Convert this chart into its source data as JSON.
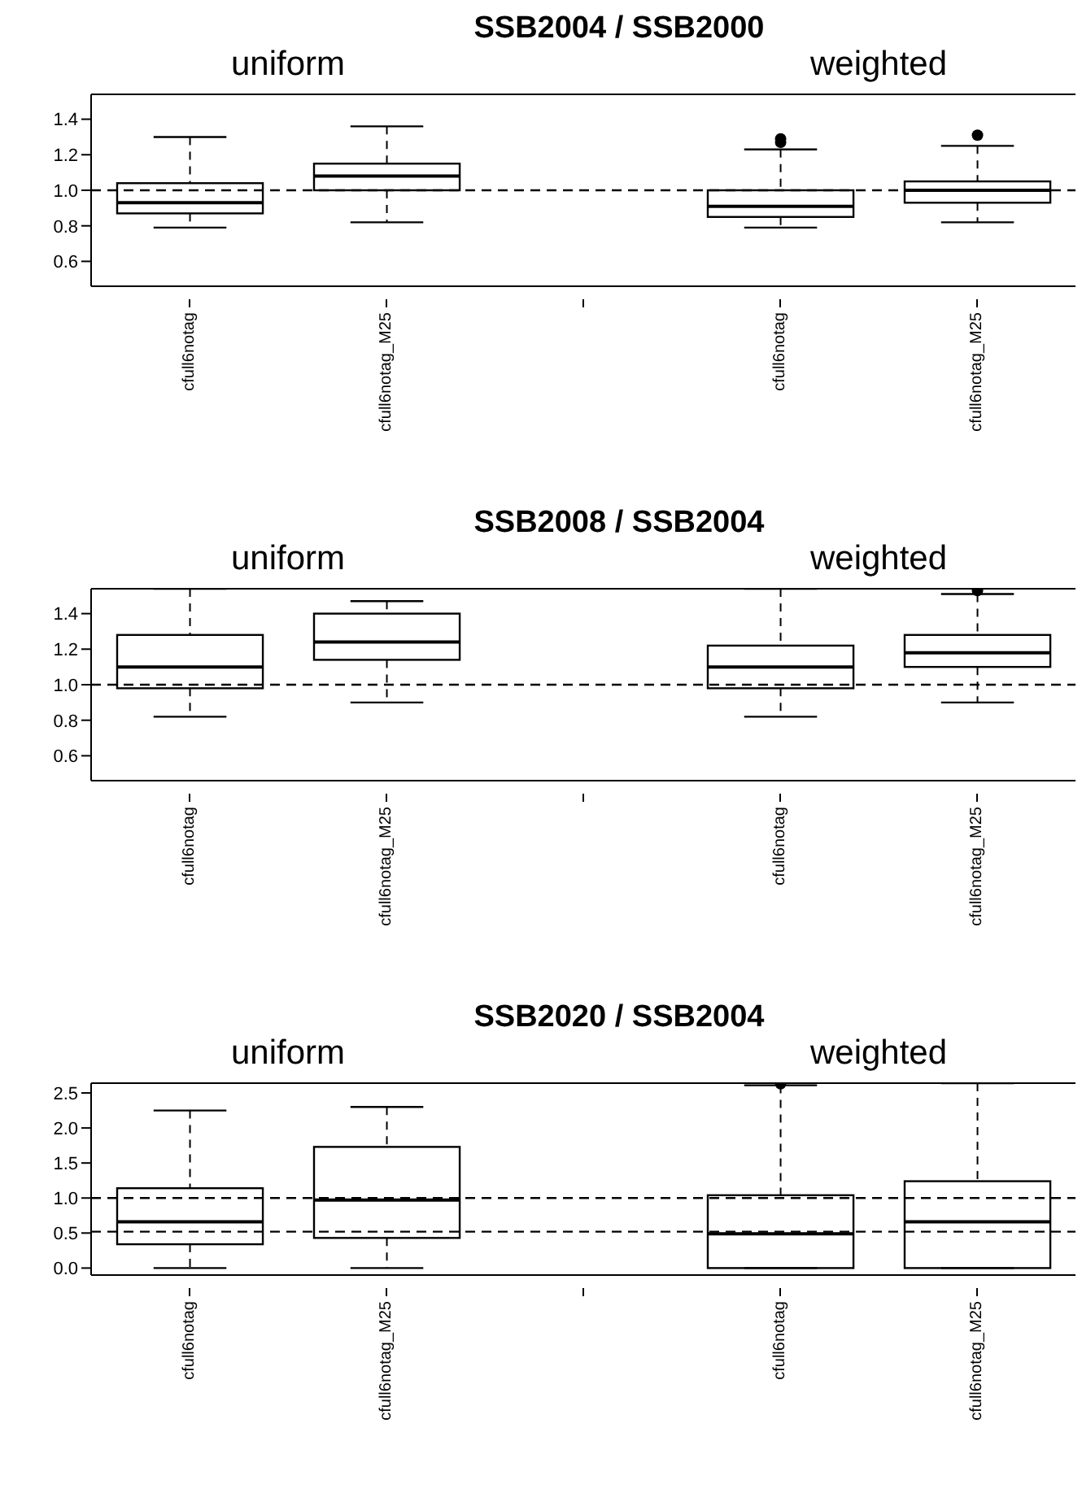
{
  "chart_data": [
    {
      "type": "box",
      "title": "SSB2004 / SSB2000",
      "annotations": [
        "uniform",
        "weighted"
      ],
      "categories": [
        "cfull6notag",
        "cfull6notag_M25",
        null,
        "cfull6notag",
        "cfull6notag_M25"
      ],
      "color": "#000000",
      "ylim": [
        0.46,
        1.54
      ],
      "yticks": [
        {
          "value": 0.6,
          "label": "0.6"
        },
        {
          "value": 0.8,
          "label": "0.8"
        },
        {
          "value": 1,
          "label": "1.0"
        },
        {
          "value": 1.2,
          "label": "1.2"
        },
        {
          "value": 1.4,
          "label": "1.4"
        }
      ],
      "ref_lines": [
        {
          "axis": "y",
          "value": 1,
          "line_style": "dashed"
        }
      ],
      "grid": false,
      "legend": false,
      "boxes": [
        {
          "low": 0.79,
          "q1": 0.87,
          "median": 0.93,
          "q3": 1.04,
          "high": 1.3
        },
        {
          "low": 0.82,
          "q1": 1.0,
          "median": 1.08,
          "q3": 1.15,
          "high": 1.36
        },
        null,
        {
          "low": 0.79,
          "q1": 0.85,
          "median": 0.91,
          "q3": 1.0,
          "high": 1.23,
          "outliers": [
            1.27,
            1.29
          ]
        },
        {
          "low": 0.82,
          "q1": 0.93,
          "median": 1.0,
          "q3": 1.05,
          "high": 1.25,
          "outliers": [
            1.31
          ]
        }
      ]
    },
    {
      "type": "box",
      "title": "SSB2008 / SSB2004",
      "annotations": [
        "uniform",
        "weighted"
      ],
      "categories": [
        "cfull6notag",
        "cfull6notag_M25",
        null,
        "cfull6notag",
        "cfull6notag_M25"
      ],
      "color": "#000000",
      "ylim": [
        0.46,
        1.54
      ],
      "yticks": [
        {
          "value": 0.6,
          "label": "0.6"
        },
        {
          "value": 0.8,
          "label": "0.8"
        },
        {
          "value": 1,
          "label": "1.0"
        },
        {
          "value": 1.2,
          "label": "1.2"
        },
        {
          "value": 1.4,
          "label": "1.4"
        }
      ],
      "ref_lines": [
        {
          "axis": "y",
          "value": 1,
          "line_style": "dashed"
        }
      ],
      "grid": false,
      "legend": false,
      "boxes": [
        {
          "low": 0.82,
          "q1": 0.98,
          "median": 1.1,
          "q3": 1.28,
          "high": 1.54
        },
        {
          "low": 0.9,
          "q1": 1.14,
          "median": 1.24,
          "q3": 1.4,
          "high": 1.47
        },
        null,
        {
          "low": 0.82,
          "q1": 0.98,
          "median": 1.1,
          "q3": 1.22,
          "high": 1.54
        },
        {
          "low": 0.9,
          "q1": 1.1,
          "median": 1.18,
          "q3": 1.28,
          "high": 1.51,
          "outliers": [
            1.53
          ]
        }
      ]
    },
    {
      "type": "box",
      "title": "SSB2020 / SSB2004",
      "annotations": [
        "uniform",
        "weighted"
      ],
      "categories": [
        "cfull6notag",
        "cfull6notag_M25",
        null,
        "cfull6notag",
        "cfull6notag_M25"
      ],
      "color": "#000000",
      "ylim": [
        -0.1,
        2.64
      ],
      "yticks": [
        {
          "value": 0,
          "label": "0.0"
        },
        {
          "value": 0.5,
          "label": "0.5"
        },
        {
          "value": 1,
          "label": "1.0"
        },
        {
          "value": 1.5,
          "label": "1.5"
        },
        {
          "value": 2,
          "label": "2.0"
        },
        {
          "value": 2.5,
          "label": "2.5"
        }
      ],
      "ref_lines": [
        {
          "axis": "y",
          "value": 1,
          "line_style": "dashed"
        },
        {
          "axis": "y",
          "value": 0.52,
          "line_style": "dashed"
        }
      ],
      "grid": false,
      "legend": false,
      "boxes": [
        {
          "low": 0,
          "q1": 0.34,
          "median": 0.66,
          "q3": 1.14,
          "high": 2.25
        },
        {
          "low": 0,
          "q1": 0.43,
          "median": 0.97,
          "q3": 1.73,
          "high": 2.3
        },
        null,
        {
          "low": 0,
          "q1": 0,
          "median": 0.49,
          "q3": 1.04,
          "high": 2.61,
          "outliers": [
            2.63
          ]
        },
        {
          "low": 0,
          "q1": 0,
          "median": 0.66,
          "q3": 1.24,
          "high": 2.64
        }
      ]
    }
  ]
}
